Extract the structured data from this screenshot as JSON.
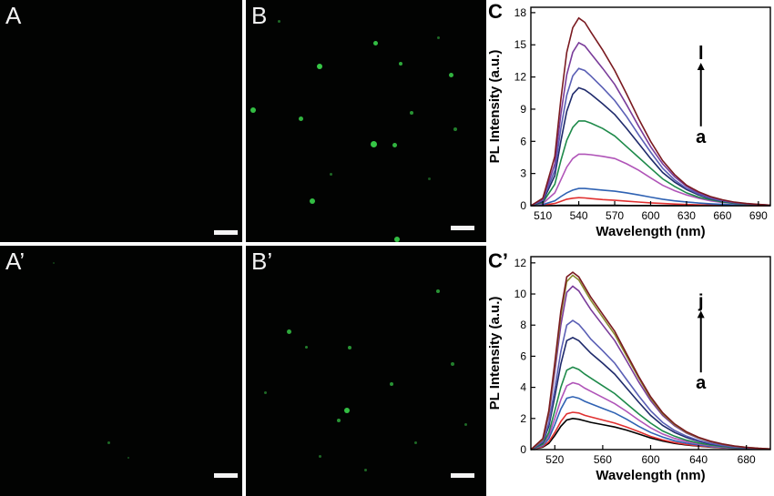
{
  "panels": {
    "A": {
      "label": "A"
    },
    "B": {
      "label": "B"
    },
    "A2": {
      "label": "A’"
    },
    "B2": {
      "label": "B’"
    }
  },
  "micrograph_colors": {
    "background": "#020302",
    "fluorescence": "#39d24a",
    "scale_bar": "#f4f4f4"
  },
  "chart_data": [
    {
      "panel_label": "C",
      "type": "line",
      "xlabel": "Wavelength (nm)",
      "ylabel": "PL Intensity (a.u.)",
      "xlim": [
        500,
        700
      ],
      "ylim": [
        0,
        18.5
      ],
      "xticks": [
        510,
        540,
        570,
        600,
        630,
        660,
        690
      ],
      "yticks": [
        0,
        3,
        6,
        9,
        12,
        15,
        18
      ],
      "annotation_top": "l",
      "annotation_bottom": "a",
      "x": [
        500,
        510,
        520,
        525,
        530,
        535,
        540,
        545,
        550,
        560,
        570,
        580,
        590,
        600,
        610,
        620,
        630,
        640,
        650,
        660,
        670,
        680,
        690,
        700
      ],
      "series": [
        {
          "color": "#000000",
          "values": [
            0,
            0.01,
            0.02,
            0.03,
            0.03,
            0.04,
            0.04,
            0.04,
            0.04,
            0.03,
            0.03,
            0.02,
            0.02,
            0.02,
            0.01,
            0.01,
            0.01,
            0.01,
            0,
            0,
            0,
            0,
            0,
            0
          ]
        },
        {
          "color": "#e03030",
          "values": [
            0,
            0.05,
            0.2,
            0.4,
            0.6,
            0.7,
            0.75,
            0.72,
            0.66,
            0.57,
            0.5,
            0.42,
            0.34,
            0.26,
            0.2,
            0.15,
            0.11,
            0.08,
            0.06,
            0.04,
            0.03,
            0.02,
            0.01,
            0
          ]
        },
        {
          "color": "#2f62b3",
          "values": [
            0,
            0.1,
            0.45,
            0.85,
            1.2,
            1.45,
            1.6,
            1.6,
            1.55,
            1.45,
            1.35,
            1.2,
            1.0,
            0.8,
            0.6,
            0.45,
            0.35,
            0.25,
            0.18,
            0.12,
            0.08,
            0.05,
            0.03,
            0.01
          ]
        },
        {
          "color": "#b054b8",
          "values": [
            0,
            0.2,
            1.2,
            2.4,
            3.6,
            4.4,
            4.8,
            4.8,
            4.75,
            4.6,
            4.4,
            3.9,
            3.3,
            2.6,
            1.9,
            1.4,
            1.0,
            0.7,
            0.45,
            0.3,
            0.2,
            0.12,
            0.07,
            0.03
          ]
        },
        {
          "color": "#1e8a4a",
          "values": [
            0,
            0.3,
            2.0,
            4.2,
            6.1,
            7.3,
            7.9,
            7.9,
            7.7,
            7.2,
            6.5,
            5.5,
            4.5,
            3.5,
            2.5,
            1.8,
            1.2,
            0.8,
            0.55,
            0.35,
            0.22,
            0.13,
            0.07,
            0.03
          ]
        },
        {
          "color": "#1f2a6b",
          "values": [
            0,
            0.4,
            2.8,
            6.0,
            8.8,
            10.4,
            11.0,
            10.8,
            10.4,
            9.5,
            8.5,
            7.2,
            5.8,
            4.4,
            3.1,
            2.2,
            1.5,
            1.0,
            0.65,
            0.42,
            0.26,
            0.16,
            0.09,
            0.04
          ]
        },
        {
          "color": "#5a5fb5",
          "values": [
            0,
            0.5,
            3.3,
            7.2,
            10.3,
            12.1,
            12.8,
            12.6,
            12.1,
            11.0,
            9.8,
            8.3,
            6.6,
            5.0,
            3.5,
            2.4,
            1.6,
            1.1,
            0.7,
            0.45,
            0.28,
            0.17,
            0.1,
            0.04
          ]
        },
        {
          "color": "#7a3c9a",
          "values": [
            0,
            0.6,
            3.9,
            8.5,
            12.2,
            14.3,
            15.2,
            14.9,
            14.2,
            12.8,
            11.3,
            9.4,
            7.4,
            5.5,
            3.9,
            2.7,
            1.8,
            1.2,
            0.8,
            0.5,
            0.3,
            0.19,
            0.11,
            0.05
          ]
        },
        {
          "color": "#7a1a20",
          "values": [
            0,
            0.7,
            4.6,
            9.9,
            14.3,
            16.6,
            17.5,
            17.1,
            16.2,
            14.5,
            12.6,
            10.4,
            8.1,
            6.0,
            4.2,
            2.9,
            1.9,
            1.3,
            0.85,
            0.55,
            0.33,
            0.2,
            0.12,
            0.05
          ]
        }
      ]
    },
    {
      "panel_label": "C’",
      "type": "line",
      "xlabel": "Wavelength (nm)",
      "ylabel": "PL Intensity (a.u.)",
      "xlim": [
        500,
        700
      ],
      "ylim": [
        0,
        12.4
      ],
      "xticks": [
        520,
        560,
        600,
        640,
        680
      ],
      "yticks": [
        0,
        2,
        4,
        6,
        8,
        10,
        12
      ],
      "annotation_top": "j",
      "annotation_bottom": "a",
      "x": [
        500,
        510,
        515,
        520,
        525,
        530,
        535,
        540,
        545,
        550,
        560,
        570,
        580,
        590,
        600,
        610,
        620,
        630,
        640,
        650,
        660,
        670,
        680,
        690,
        700
      ],
      "series": [
        {
          "color": "#000000",
          "values": [
            0,
            0.15,
            0.4,
            0.9,
            1.5,
            1.9,
            2.0,
            1.95,
            1.85,
            1.75,
            1.6,
            1.45,
            1.25,
            1.0,
            0.75,
            0.55,
            0.4,
            0.3,
            0.22,
            0.16,
            0.11,
            0.08,
            0.05,
            0.03,
            0.02
          ]
        },
        {
          "color": "#e03030",
          "values": [
            0,
            0.2,
            0.5,
            1.1,
            1.8,
            2.3,
            2.4,
            2.35,
            2.2,
            2.1,
            1.9,
            1.7,
            1.45,
            1.15,
            0.85,
            0.62,
            0.45,
            0.33,
            0.24,
            0.17,
            0.12,
            0.08,
            0.05,
            0.03,
            0.02
          ]
        },
        {
          "color": "#2f62b3",
          "values": [
            0,
            0.25,
            0.7,
            1.6,
            2.6,
            3.3,
            3.4,
            3.3,
            3.1,
            2.95,
            2.65,
            2.35,
            1.95,
            1.5,
            1.1,
            0.8,
            0.57,
            0.41,
            0.29,
            0.2,
            0.14,
            0.09,
            0.06,
            0.04,
            0.02
          ]
        },
        {
          "color": "#b054b8",
          "values": [
            0,
            0.3,
            0.9,
            2.0,
            3.2,
            4.1,
            4.3,
            4.2,
            3.95,
            3.75,
            3.35,
            2.95,
            2.45,
            1.9,
            1.4,
            1.0,
            0.72,
            0.51,
            0.36,
            0.25,
            0.17,
            0.11,
            0.07,
            0.04,
            0.02
          ]
        },
        {
          "color": "#1e8a4a",
          "values": [
            0,
            0.35,
            1.1,
            2.5,
            4.0,
            5.1,
            5.3,
            5.15,
            4.85,
            4.6,
            4.1,
            3.6,
            2.95,
            2.3,
            1.7,
            1.2,
            0.86,
            0.6,
            0.42,
            0.29,
            0.2,
            0.13,
            0.08,
            0.05,
            0.03
          ]
        },
        {
          "color": "#1f2a6b",
          "values": [
            0,
            0.45,
            1.5,
            3.4,
            5.5,
            7.0,
            7.2,
            7.0,
            6.6,
            6.2,
            5.55,
            4.85,
            3.95,
            3.05,
            2.2,
            1.55,
            1.1,
            0.77,
            0.53,
            0.36,
            0.25,
            0.16,
            0.1,
            0.06,
            0.03
          ]
        },
        {
          "color": "#5a5fb5",
          "values": [
            0,
            0.5,
            1.7,
            3.9,
            6.3,
            8.0,
            8.3,
            8.05,
            7.6,
            7.1,
            6.35,
            5.55,
            4.5,
            3.45,
            2.5,
            1.75,
            1.23,
            0.86,
            0.59,
            0.4,
            0.27,
            0.17,
            0.11,
            0.06,
            0.03
          ]
        },
        {
          "color": "#7a3c9a",
          "values": [
            0,
            0.6,
            2.2,
            5.0,
            8.0,
            10.1,
            10.5,
            10.2,
            9.6,
            9.0,
            8.0,
            7.0,
            5.7,
            4.35,
            3.15,
            2.2,
            1.53,
            1.06,
            0.73,
            0.5,
            0.33,
            0.21,
            0.13,
            0.07,
            0.04
          ]
        },
        {
          "color": "#8a8a30",
          "values": [
            0,
            0.65,
            2.4,
            5.4,
            8.6,
            10.8,
            11.2,
            10.9,
            10.25,
            9.6,
            8.5,
            7.4,
            6.0,
            4.6,
            3.3,
            2.3,
            1.6,
            1.1,
            0.76,
            0.52,
            0.35,
            0.22,
            0.14,
            0.08,
            0.04
          ]
        },
        {
          "color": "#7a1a20",
          "values": [
            0,
            0.7,
            2.5,
            5.6,
            8.9,
            11.1,
            11.4,
            11.1,
            10.45,
            9.8,
            8.7,
            7.6,
            6.15,
            4.7,
            3.4,
            2.37,
            1.65,
            1.14,
            0.79,
            0.54,
            0.36,
            0.23,
            0.14,
            0.08,
            0.04
          ]
        }
      ]
    }
  ]
}
